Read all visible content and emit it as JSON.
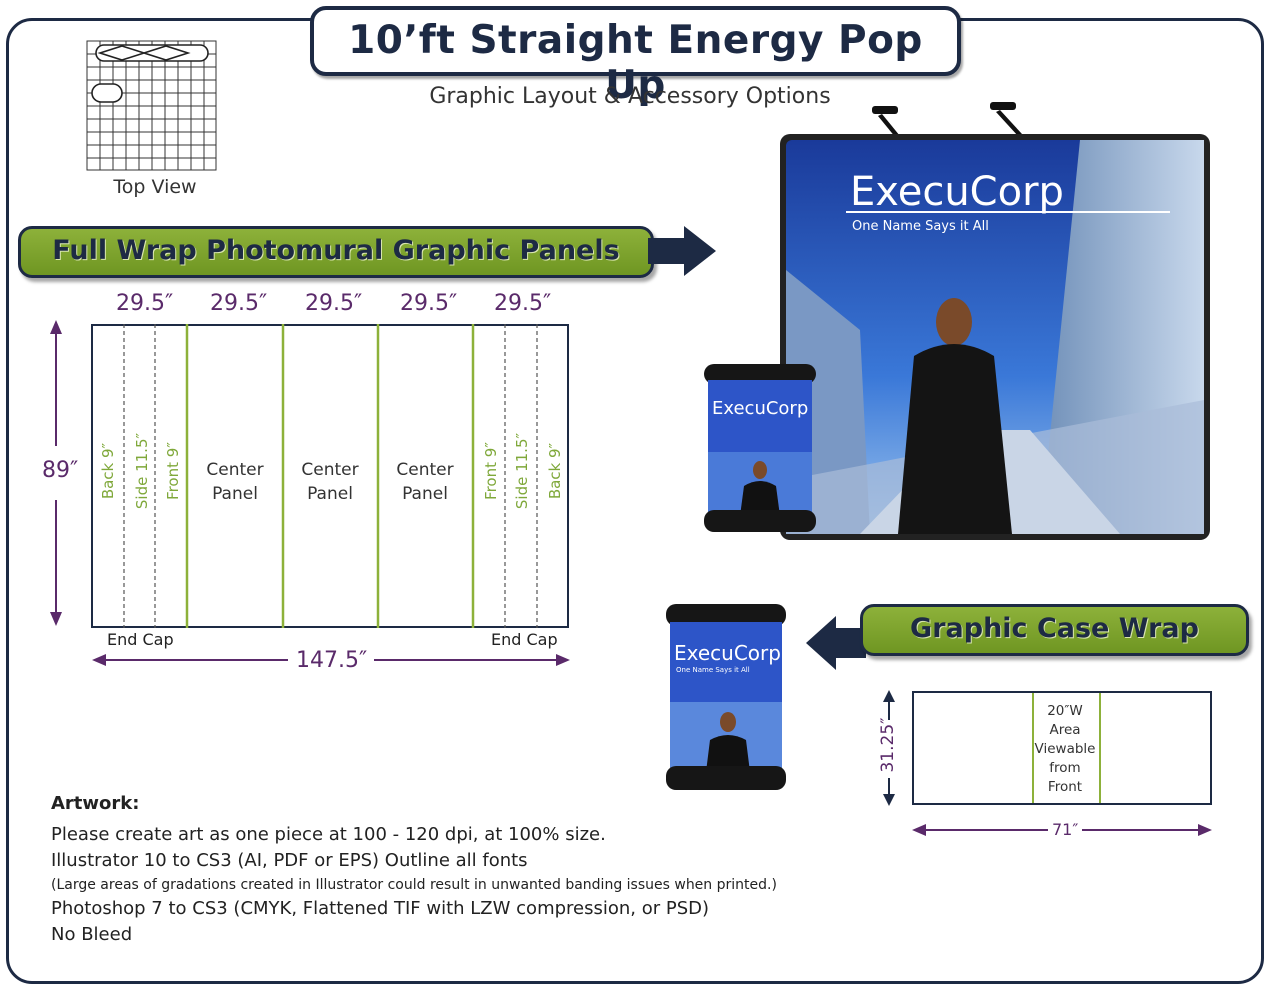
{
  "title": "10’ft Straight Energy Pop Up",
  "subtitle": "Graphic Layout & Accessory Options",
  "top_view_label": "Top View",
  "banners": {
    "main": "Full Wrap Photomural Graphic Panels",
    "case": "Graphic Case Wrap"
  },
  "panel_widths": [
    "29.5″",
    "29.5″",
    "29.5″",
    "29.5″",
    "29.5″"
  ],
  "height_label": "89″",
  "total_width_label": "147.5″",
  "end_cap_left": "End Cap",
  "end_cap_right": "End Cap",
  "left_strips": [
    "Back 9″",
    "Side 11.5″",
    "Front 9″"
  ],
  "right_strips": [
    "Front 9″",
    "Side 11.5″",
    "Back 9″"
  ],
  "center_panels": [
    {
      "line1": "Center",
      "line2": "Panel"
    },
    {
      "line1": "Center",
      "line2": "Panel"
    },
    {
      "line1": "Center",
      "line2": "Panel"
    }
  ],
  "brand": {
    "name": "ExecuCorp",
    "tagline": "One Name Says it All"
  },
  "case_wrap": {
    "height_label": "31.25″",
    "width_label": "71″",
    "area_lines": [
      "20″W",
      "Area",
      "Viewable",
      "from",
      "Front"
    ]
  },
  "artwork": {
    "heading": "Artwork:",
    "line1": "Please create art as one piece at 100 - 120 dpi, at 100% size.",
    "line2": "Illustrator 10 to CS3 (AI, PDF or EPS) Outline all fonts",
    "note": "(Large areas of gradations created in Illustrator could result in unwanted banding issues when printed.)",
    "line3": "Photoshop 7 to CS3 (CMYK, Flattened TIF with LZW compression, or PSD)",
    "line4": "No Bleed"
  },
  "colors": {
    "navy": "#1d2a44",
    "green": "#7fa83a",
    "purple": "#5a2a6a"
  }
}
